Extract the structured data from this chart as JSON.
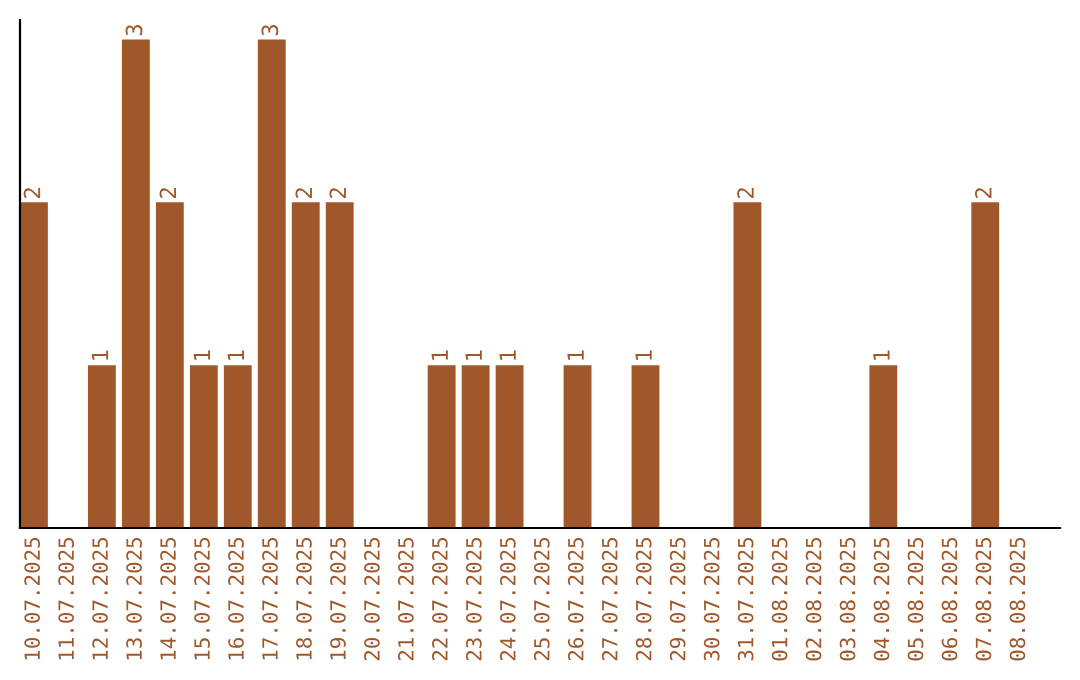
{
  "chart_data": {
    "type": "bar",
    "categories": [
      "10.07.2025",
      "11.07.2025",
      "12.07.2025",
      "13.07.2025",
      "14.07.2025",
      "15.07.2025",
      "16.07.2025",
      "17.07.2025",
      "18.07.2025",
      "19.07.2025",
      "20.07.2025",
      "21.07.2025",
      "22.07.2025",
      "23.07.2025",
      "24.07.2025",
      "25.07.2025",
      "26.07.2025",
      "27.07.2025",
      "28.07.2025",
      "29.07.2025",
      "30.07.2025",
      "31.07.2025",
      "01.08.2025",
      "02.08.2025",
      "03.08.2025",
      "04.08.2025",
      "05.08.2025",
      "06.08.2025",
      "07.08.2025",
      "08.08.2025"
    ],
    "values": [
      2,
      0,
      1,
      3,
      2,
      1,
      1,
      3,
      2,
      2,
      0,
      0,
      1,
      1,
      1,
      0,
      1,
      0,
      1,
      0,
      0,
      2,
      0,
      0,
      0,
      1,
      0,
      0,
      2,
      0
    ],
    "value_labels": [
      "2",
      null,
      "1",
      "3",
      "2",
      "1",
      "1",
      "3",
      "2",
      "2",
      null,
      null,
      "1",
      "1",
      "1",
      null,
      "1",
      null,
      "1",
      null,
      null,
      "2",
      null,
      null,
      null,
      "1",
      null,
      null,
      "2",
      null
    ],
    "color": "#a0582a",
    "ylim": [
      0,
      3.12
    ],
    "tick_labels": "x",
    "grid": false,
    "legend": false
  }
}
